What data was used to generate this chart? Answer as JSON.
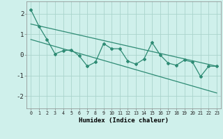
{
  "x": [
    0,
    1,
    2,
    3,
    4,
    5,
    6,
    7,
    8,
    9,
    10,
    11,
    12,
    13,
    14,
    15,
    16,
    17,
    18,
    19,
    20,
    21,
    22,
    23
  ],
  "line1": [
    2.2,
    1.4,
    0.75,
    0.05,
    0.2,
    0.25,
    -0.05,
    -0.55,
    -0.35,
    0.55,
    0.3,
    0.3,
    -0.3,
    -0.45,
    -0.2,
    0.6,
    0.0,
    -0.4,
    -0.5,
    -0.25,
    -0.35,
    -1.05,
    -0.55,
    -0.55
  ],
  "trend1_x": [
    0,
    23
  ],
  "trend1_y": [
    1.5,
    -0.55
  ],
  "trend2_x": [
    0,
    23
  ],
  "trend2_y": [
    0.75,
    -1.85
  ],
  "line_color": "#2e8b74",
  "bg_color": "#cff0eb",
  "grid_color": "#aad4cc",
  "xlabel": "Humidex (Indice chaleur)",
  "ylabel_ticks": [
    -2,
    -1,
    0,
    1,
    2
  ],
  "xlim": [
    -0.5,
    23.5
  ],
  "ylim": [
    -2.6,
    2.6
  ],
  "title": ""
}
